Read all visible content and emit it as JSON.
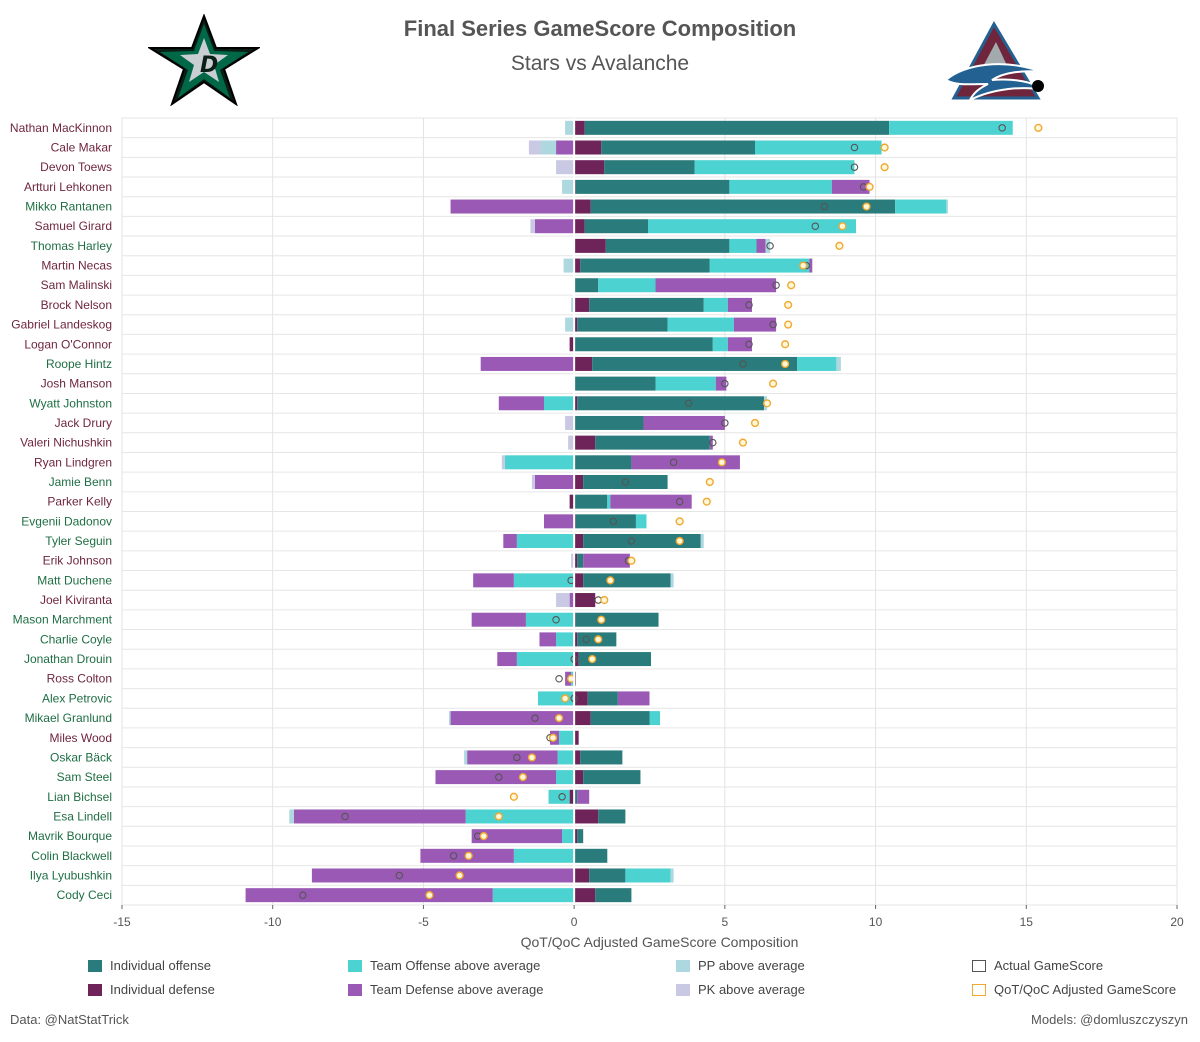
{
  "header": {
    "title": "Final Series GameScore Composition",
    "subtitle": "Stars vs Avalanche"
  },
  "footer": {
    "data_credit": "Data: @NatStatTrick",
    "model_credit": "Models: @domluszczyszyn"
  },
  "logos": {
    "left": "stars-logo-icon",
    "right": "avalanche-logo-icon"
  },
  "colors": {
    "individual_offense": "#2a7b7b",
    "individual_defense": "#6e2359",
    "team_offense": "#4dd2d2",
    "team_defense": "#9b59b6",
    "pp": "#add8e0",
    "pk": "#c9c9e3",
    "stars_name": "#1f6e43",
    "avs_name": "#6f263d",
    "adjusted_marker": "#f0a830",
    "actual_marker": "#555555"
  },
  "legend": [
    {
      "key": "individual_offense",
      "label": "Individual offense",
      "style": "fill"
    },
    {
      "key": "team_offense",
      "label": "Team Offense above average",
      "style": "fill"
    },
    {
      "key": "pp",
      "label": "PP above average",
      "style": "fill"
    },
    {
      "key": "actual_marker",
      "label": "Actual GameScore",
      "style": "outline"
    },
    {
      "key": "individual_defense",
      "label": "Individual defense",
      "style": "fill"
    },
    {
      "key": "team_defense",
      "label": "Team Defense above average",
      "style": "fill"
    },
    {
      "key": "pk",
      "label": "PK above average",
      "style": "fill"
    },
    {
      "key": "adjusted_marker",
      "label": "QoT/QoC Adjusted GameScore",
      "style": "outline"
    }
  ],
  "chart_data": {
    "type": "bar",
    "orientation": "horizontal",
    "stacked": true,
    "xlabel": "QoT/QoC Adjusted GameScore Composition",
    "xlim": [
      -15,
      20
    ],
    "xticks": [
      -15,
      -10,
      -5,
      0,
      5,
      10,
      15,
      20
    ],
    "grid": true,
    "legend_position": "bottom",
    "series_order": [
      "individual_defense",
      "individual_offense",
      "team_offense",
      "team_defense",
      "pp",
      "pk"
    ],
    "players": [
      {
        "name": "Nathan MacKinnon",
        "team": "COL",
        "individual_defense": 0.35,
        "individual_offense": 10.1,
        "team_offense": 4.1,
        "team_defense": 0,
        "pp": -0.3,
        "pk": 0,
        "actual": 14.2,
        "adjusted": 15.4
      },
      {
        "name": "Cale Makar",
        "team": "COL",
        "individual_defense": 0.9,
        "individual_offense": 5.1,
        "team_offense": 4.2,
        "team_defense": -0.6,
        "pp": -0.5,
        "pk": -0.4,
        "actual": 9.3,
        "adjusted": 10.3
      },
      {
        "name": "Devon Toews",
        "team": "COL",
        "individual_defense": 1.0,
        "individual_offense": 3.0,
        "team_offense": 5.3,
        "team_defense": 0,
        "pp": 0,
        "pk": -0.6,
        "actual": 9.3,
        "adjusted": 10.3
      },
      {
        "name": "Artturi Lehkonen",
        "team": "COL",
        "individual_defense": 0.05,
        "individual_offense": 5.1,
        "team_offense": 3.4,
        "team_defense": 1.25,
        "pp": -0.4,
        "pk": 0,
        "actual": 9.6,
        "adjusted": 9.8
      },
      {
        "name": "Mikko Rantanen",
        "team": "DAL",
        "individual_defense": 0.55,
        "individual_offense": 10.1,
        "team_offense": 1.7,
        "team_defense": -4.1,
        "pp": 0.05,
        "pk": 0,
        "actual": 8.3,
        "adjusted": 9.7
      },
      {
        "name": "Samuel Girard",
        "team": "COL",
        "individual_defense": 0.35,
        "individual_offense": 2.1,
        "team_offense": 6.9,
        "team_defense": -1.3,
        "pp": 0,
        "pk": -0.15,
        "actual": 8.0,
        "adjusted": 8.9
      },
      {
        "name": "Thomas Harley",
        "team": "DAL",
        "individual_defense": 1.05,
        "individual_offense": 4.1,
        "team_offense": 0.9,
        "team_defense": 0.3,
        "pp": 0.15,
        "pk": 0,
        "actual": 6.5,
        "adjusted": 8.8
      },
      {
        "name": "Martin Necas",
        "team": "COL",
        "individual_defense": 0.2,
        "individual_offense": 4.3,
        "team_offense": 3.3,
        "team_defense": 0.1,
        "pp": -0.35,
        "pk": 0,
        "actual": 7.7,
        "adjusted": 7.6
      },
      {
        "name": "Sam Malinski",
        "team": "COL",
        "individual_defense": 0,
        "individual_offense": 0.8,
        "team_offense": 1.9,
        "team_defense": 4.0,
        "pp": 0,
        "pk": 0,
        "actual": 6.7,
        "adjusted": 7.2
      },
      {
        "name": "Brock Nelson",
        "team": "COL",
        "individual_defense": 0.5,
        "individual_offense": 3.8,
        "team_offense": 0.8,
        "team_defense": 0.8,
        "pp": -0.1,
        "pk": 0,
        "actual": 5.8,
        "adjusted": 7.1
      },
      {
        "name": "Gabriel Landeskog",
        "team": "COL",
        "individual_defense": 0.1,
        "individual_offense": 3.0,
        "team_offense": 2.2,
        "team_defense": 1.4,
        "pp": -0.3,
        "pk": 0,
        "actual": 6.6,
        "adjusted": 7.1
      },
      {
        "name": "Logan O'Connor",
        "team": "COL",
        "individual_defense": -0.15,
        "individual_offense": 4.6,
        "team_offense": 0.5,
        "team_defense": 0.8,
        "pp": 0,
        "pk": 0,
        "actual": 5.8,
        "adjusted": 7.0
      },
      {
        "name": "Roope Hintz",
        "team": "DAL",
        "individual_defense": 0.6,
        "individual_offense": 6.8,
        "team_offense": 1.3,
        "team_defense": -3.1,
        "pp": 0.15,
        "pk": 0,
        "actual": 5.6,
        "adjusted": 7.0
      },
      {
        "name": "Josh Manson",
        "team": "COL",
        "individual_defense": 0,
        "individual_offense": 2.7,
        "team_offense": 2.0,
        "team_defense": 0.35,
        "pp": 0,
        "pk": 0,
        "actual": 5.0,
        "adjusted": 6.6
      },
      {
        "name": "Wyatt Johnston",
        "team": "DAL",
        "individual_defense": 0.1,
        "individual_offense": 6.2,
        "team_offense": -1.0,
        "team_defense": -1.5,
        "pp": 0.1,
        "pk": 0,
        "actual": 3.8,
        "adjusted": 6.4
      },
      {
        "name": "Jack Drury",
        "team": "COL",
        "individual_defense": 0,
        "individual_offense": 2.3,
        "team_offense": 0,
        "team_defense": 2.7,
        "pp": 0,
        "pk": -0.3,
        "actual": 5.0,
        "adjusted": 6.0
      },
      {
        "name": "Valeri Nichushkin",
        "team": "COL",
        "individual_defense": 0.7,
        "individual_offense": 3.8,
        "team_offense": 0,
        "team_defense": 0.1,
        "pp": 0,
        "pk": -0.2,
        "actual": 4.6,
        "adjusted": 5.6
      },
      {
        "name": "Ryan Lindgren",
        "team": "COL",
        "individual_defense": 0,
        "individual_offense": 1.9,
        "team_offense": -2.3,
        "team_defense": 3.6,
        "pp": 0,
        "pk": -0.1,
        "actual": 3.3,
        "adjusted": 4.9
      },
      {
        "name": "Jamie Benn",
        "team": "DAL",
        "individual_defense": 0.3,
        "individual_offense": 2.8,
        "team_offense": 0,
        "team_defense": -1.3,
        "pp": 0,
        "pk": -0.1,
        "actual": 1.7,
        "adjusted": 4.5
      },
      {
        "name": "Parker Kelly",
        "team": "COL",
        "individual_defense": -0.15,
        "individual_offense": 1.1,
        "team_offense": 0.1,
        "team_defense": 2.7,
        "pp": 0,
        "pk": 0,
        "actual": 3.5,
        "adjusted": 4.4
      },
      {
        "name": "Evgenii Dadonov",
        "team": "DAL",
        "individual_defense": 0.05,
        "individual_offense": 2.0,
        "team_offense": 0.35,
        "team_defense": -1.0,
        "pp": 0,
        "pk": 0,
        "actual": 1.3,
        "adjusted": 3.5
      },
      {
        "name": "Tyler Seguin",
        "team": "DAL",
        "individual_defense": 0.3,
        "individual_offense": 3.9,
        "team_offense": -1.9,
        "team_defense": -0.45,
        "pp": 0.1,
        "pk": 0,
        "actual": 1.9,
        "adjusted": 3.5
      },
      {
        "name": "Erik Johnson",
        "team": "COL",
        "individual_defense": 0.1,
        "individual_offense": 0.2,
        "team_offense": 0,
        "team_defense": 1.55,
        "pp": 0,
        "pk": -0.1,
        "actual": 1.8,
        "adjusted": 1.9
      },
      {
        "name": "Matt Duchene",
        "team": "DAL",
        "individual_defense": 0.3,
        "individual_offense": 2.9,
        "team_offense": -2.0,
        "team_defense": -1.35,
        "pp": 0.1,
        "pk": 0,
        "actual": -0.1,
        "adjusted": 1.2
      },
      {
        "name": "Joel Kiviranta",
        "team": "COL",
        "individual_defense": 0.7,
        "individual_offense": 0,
        "team_offense": 0,
        "team_defense": -0.15,
        "pp": 0,
        "pk": -0.45,
        "actual": 0.8,
        "adjusted": 1.0
      },
      {
        "name": "Mason Marchment",
        "team": "DAL",
        "individual_defense": 0.05,
        "individual_offense": 2.75,
        "team_offense": -1.6,
        "team_defense": -1.8,
        "pp": 0,
        "pk": 0,
        "actual": -0.6,
        "adjusted": 0.9
      },
      {
        "name": "Charlie Coyle",
        "team": "DAL",
        "individual_defense": 0.1,
        "individual_offense": 1.3,
        "team_offense": -0.6,
        "team_defense": -0.55,
        "pp": 0,
        "pk": 0,
        "actual": 0.4,
        "adjusted": 0.8
      },
      {
        "name": "Jonathan Drouin",
        "team": "DAL",
        "individual_defense": 0.15,
        "individual_offense": 2.4,
        "team_offense": -1.9,
        "team_defense": -0.65,
        "pp": 0,
        "pk": 0,
        "actual": 0.0,
        "adjusted": 0.6
      },
      {
        "name": "Ross Colton",
        "team": "COL",
        "individual_defense": 0.05,
        "individual_offense": 0,
        "team_offense": -0.1,
        "team_defense": -0.2,
        "pp": 0,
        "pk": 0,
        "actual": -0.5,
        "adjusted": -0.1
      },
      {
        "name": "Alex Petrovic",
        "team": "DAL",
        "individual_defense": 0.45,
        "individual_offense": 1.0,
        "team_offense": -1.2,
        "team_defense": 1.05,
        "pp": 0,
        "pk": 0,
        "actual": 0.0,
        "adjusted": -0.3
      },
      {
        "name": "Mikael Granlund",
        "team": "DAL",
        "individual_defense": 0.55,
        "individual_offense": 1.95,
        "team_offense": 0.35,
        "team_defense": -4.1,
        "pp": -0.05,
        "pk": 0,
        "actual": -1.3,
        "adjusted": -0.5
      },
      {
        "name": "Miles Wood",
        "team": "COL",
        "individual_defense": 0.15,
        "individual_offense": 0,
        "team_offense": -0.5,
        "team_defense": -0.3,
        "pp": 0,
        "pk": 0,
        "actual": -0.8,
        "adjusted": -0.7
      },
      {
        "name": "Oskar Bäck",
        "team": "DAL",
        "individual_defense": 0.2,
        "individual_offense": 1.4,
        "team_offense": -0.55,
        "team_defense": -3.0,
        "pp": -0.1,
        "pk": 0,
        "actual": -1.9,
        "adjusted": -1.4
      },
      {
        "name": "Sam Steel",
        "team": "DAL",
        "individual_defense": 0.3,
        "individual_offense": 1.9,
        "team_offense": -0.6,
        "team_defense": -4.0,
        "pp": 0,
        "pk": 0,
        "actual": -2.5,
        "adjusted": -1.7
      },
      {
        "name": "Lian Bichsel",
        "team": "DAL",
        "individual_defense": -0.15,
        "individual_offense": 0.1,
        "team_offense": -0.7,
        "team_defense": 0.4,
        "pp": 0,
        "pk": 0,
        "actual": -0.4,
        "adjusted": -2.0
      },
      {
        "name": "Esa Lindell",
        "team": "DAL",
        "individual_defense": 0.8,
        "individual_offense": 0.9,
        "team_offense": -3.6,
        "team_defense": -5.7,
        "pp": -0.15,
        "pk": 0,
        "actual": -7.6,
        "adjusted": -2.5
      },
      {
        "name": "Mavrik Bourque",
        "team": "DAL",
        "individual_defense": 0.1,
        "individual_offense": 0.2,
        "team_offense": -0.4,
        "team_defense": -3.0,
        "pp": 0,
        "pk": 0,
        "actual": -3.2,
        "adjusted": -3.0
      },
      {
        "name": "Colin Blackwell",
        "team": "DAL",
        "individual_defense": 0,
        "individual_offense": 1.1,
        "team_offense": -2.0,
        "team_defense": -3.1,
        "pp": 0,
        "pk": 0,
        "actual": -4.0,
        "adjusted": -3.5
      },
      {
        "name": "Ilya Lyubushkin",
        "team": "DAL",
        "individual_defense": 0.5,
        "individual_offense": 1.2,
        "team_offense": 1.5,
        "team_defense": -8.7,
        "pp": 0.1,
        "pk": 0,
        "actual": -5.8,
        "adjusted": -3.8
      },
      {
        "name": "Cody Ceci",
        "team": "DAL",
        "individual_defense": 0.7,
        "individual_offense": 1.2,
        "team_offense": -2.7,
        "team_defense": -8.2,
        "pp": 0,
        "pk": 0,
        "actual": -9.0,
        "adjusted": -4.8
      }
    ]
  }
}
